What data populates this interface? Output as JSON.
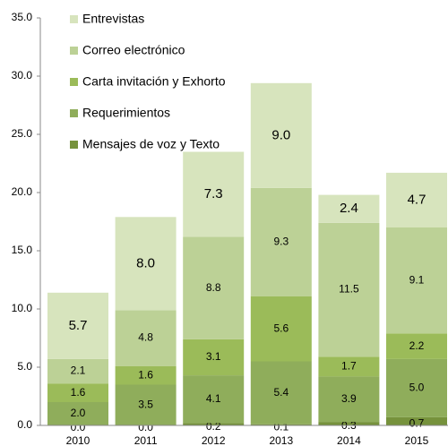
{
  "chart_data": {
    "type": "stacked_bar",
    "categories": [
      "2010",
      "2011",
      "2012",
      "2013",
      "2014",
      "2015"
    ],
    "series": [
      {
        "name": "Mensajes de voz y Texto",
        "color": "#76923c",
        "values": [
          0.0,
          0.0,
          0.2,
          0.1,
          0.3,
          0.7
        ],
        "value_labels": [
          "0.0",
          "0.0",
          "0.2",
          "0.1",
          "0.3",
          "0.7"
        ]
      },
      {
        "name": "Requerimientos",
        "color": "#8fad5b",
        "values": [
          2.0,
          3.5,
          4.1,
          5.4,
          3.9,
          5.0
        ],
        "value_labels": [
          "2.0",
          "3.5",
          "4.1",
          "5.4",
          "3.9",
          "5.0"
        ]
      },
      {
        "name": "Carta invitación y Exhorto",
        "color": "#9bbb59",
        "values": [
          1.6,
          1.6,
          3.1,
          5.6,
          1.7,
          2.2
        ],
        "value_labels": [
          "1.6",
          "1.6",
          "3.1",
          "5.6",
          "1.7",
          "2.2"
        ]
      },
      {
        "name": "Correo electrónico",
        "color": "#bcd196",
        "values": [
          2.1,
          4.8,
          8.8,
          9.3,
          11.5,
          9.1
        ],
        "value_labels": [
          "2.1",
          "4.8",
          "8.8",
          "9.3",
          "11.5",
          "9.1"
        ]
      },
      {
        "name": "Entrevistas",
        "color": "#d7e4bd",
        "values": [
          5.7,
          8.0,
          7.3,
          9.0,
          2.4,
          4.7
        ],
        "value_labels": [
          "5.7",
          "8.0",
          "7.3",
          "9.0",
          "2.4",
          "4.7"
        ]
      }
    ],
    "ylim": [
      0,
      35
    ],
    "yticks": [
      {
        "value": 0,
        "label": "0.0"
      },
      {
        "value": 5,
        "label": "5.0"
      },
      {
        "value": 10,
        "label": "10.0"
      },
      {
        "value": 15,
        "label": "15.0"
      },
      {
        "value": 20,
        "label": "20.0"
      },
      {
        "value": 25,
        "label": "25.0"
      },
      {
        "value": 30,
        "label": "30.0"
      },
      {
        "value": 35,
        "label": "35.0"
      }
    ],
    "grid": false,
    "legend": "upper-left"
  }
}
